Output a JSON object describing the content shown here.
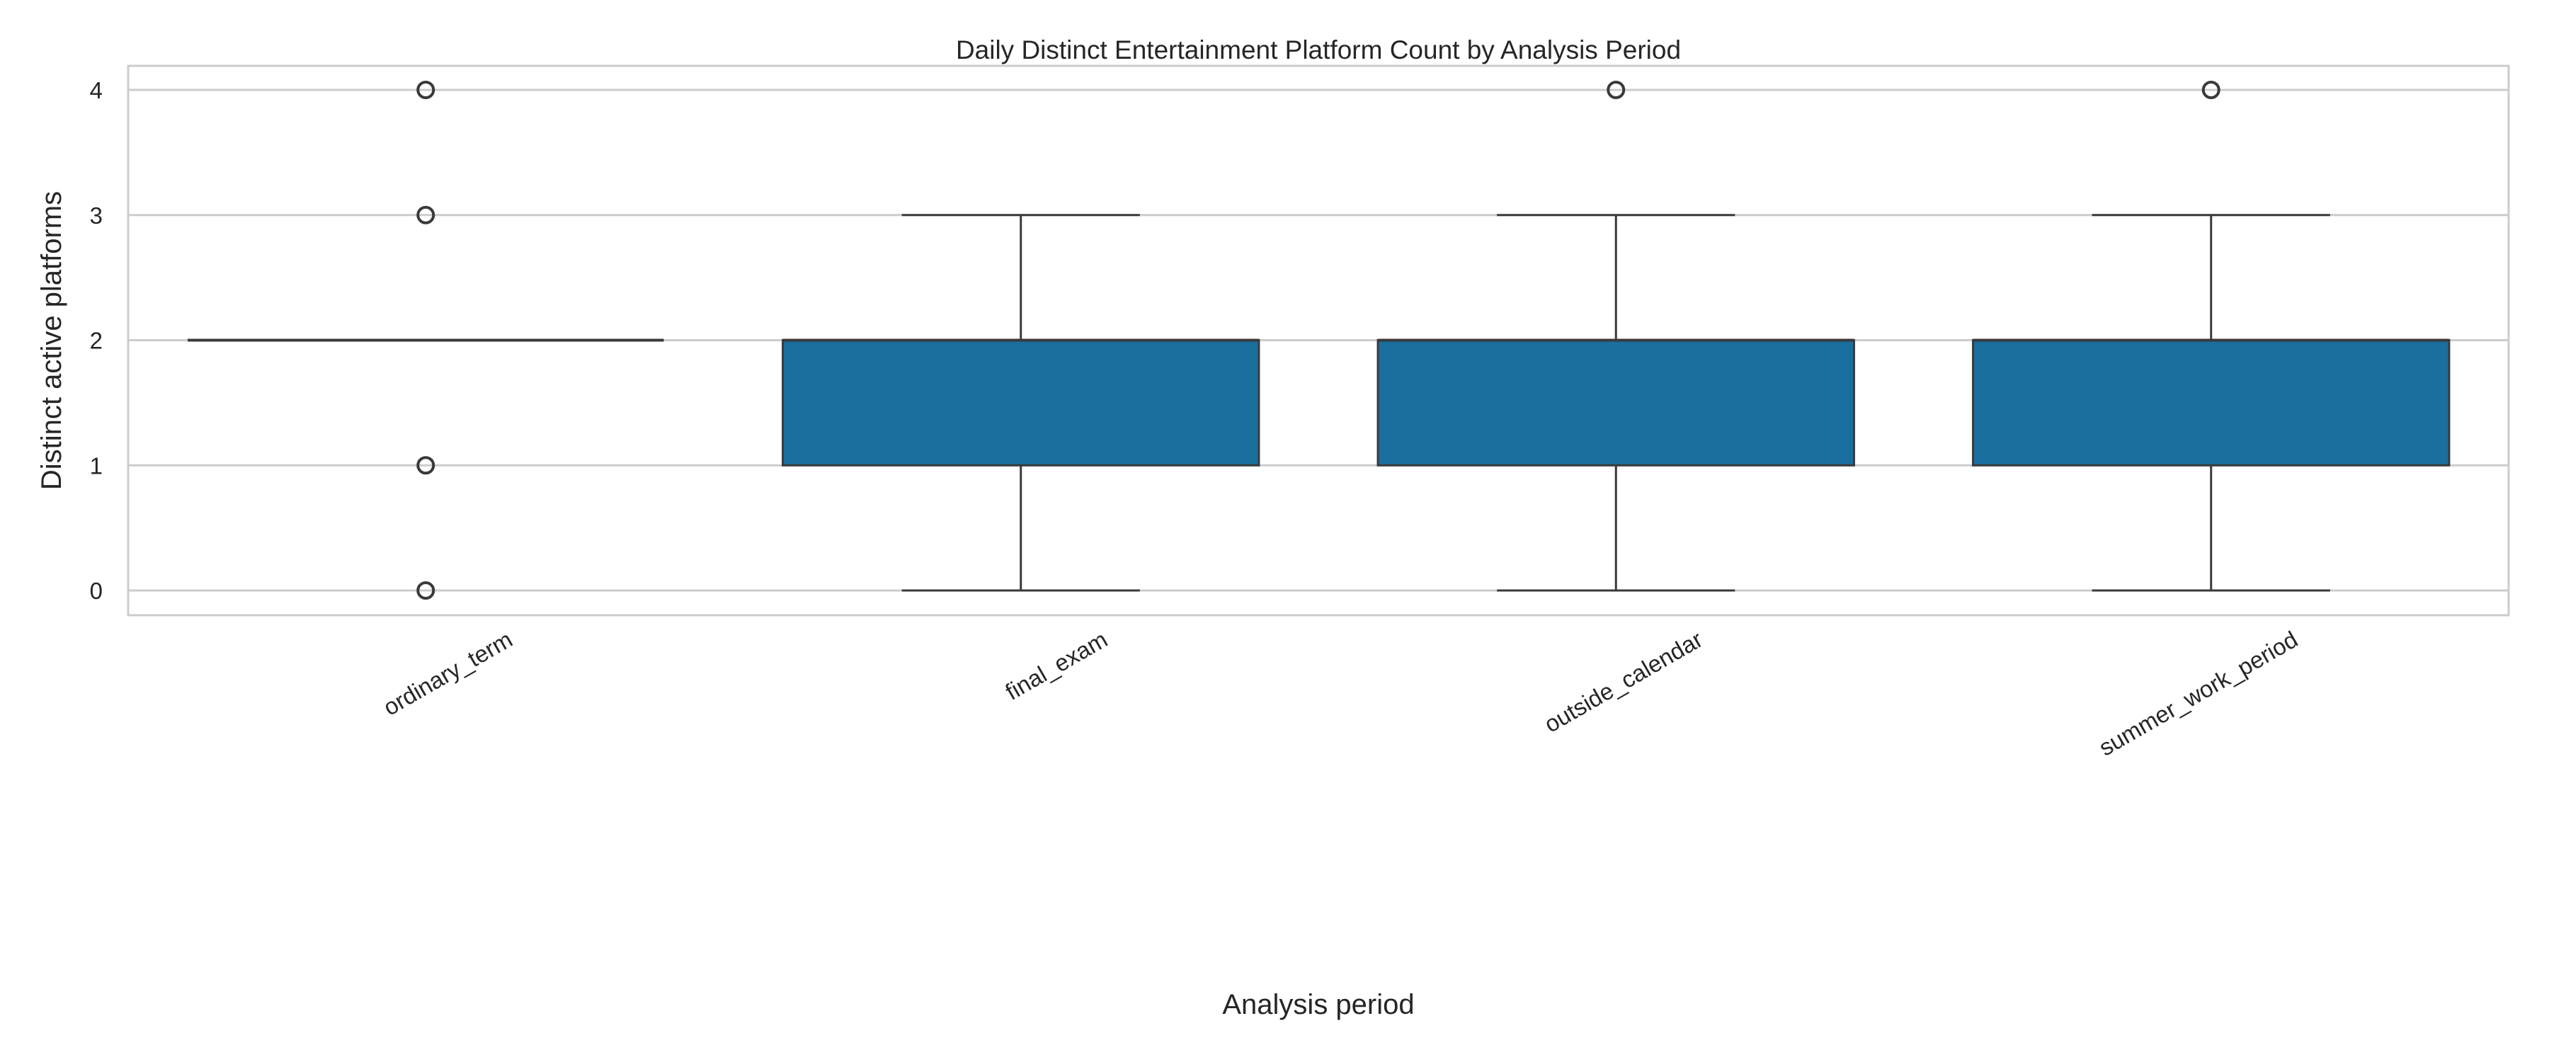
{
  "chart_data": {
    "type": "box",
    "title": "Daily Distinct Entertainment Platform Count by Analysis Period",
    "xlabel": "Analysis period",
    "ylabel": "Distinct active platforms",
    "ylim": [
      -0.2,
      4.2
    ],
    "yticks": [
      0,
      1,
      2,
      3,
      4
    ],
    "grid": true,
    "box_color": "#1a6f9f",
    "edge_color": "#3a3a3a",
    "categories": [
      "ordinary_term",
      "final_exam",
      "outside_calendar",
      "summer_work_period"
    ],
    "boxes": [
      {
        "whisker_low": 2,
        "q1": 2,
        "median": 2,
        "q3": 2,
        "whisker_high": 2,
        "outliers": [
          4,
          3,
          1,
          0
        ]
      },
      {
        "whisker_low": 0,
        "q1": 1,
        "median": 2,
        "q3": 2,
        "whisker_high": 3,
        "outliers": []
      },
      {
        "whisker_low": 0,
        "q1": 1,
        "median": 2,
        "q3": 2,
        "whisker_high": 3,
        "outliers": [
          4
        ]
      },
      {
        "whisker_low": 0,
        "q1": 1,
        "median": 2,
        "q3": 2,
        "whisker_high": 3,
        "outliers": [
          4
        ]
      }
    ]
  }
}
